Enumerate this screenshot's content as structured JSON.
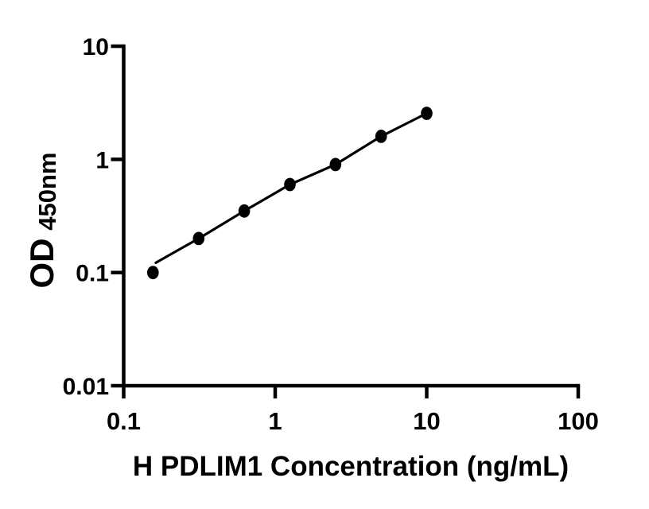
{
  "chart_data": {
    "type": "scatter",
    "title": "",
    "xlabel": "H PDLIM1 Concentration (ng/mL)",
    "ylabel_main": "OD",
    "ylabel_sub": "450nm",
    "x_scale": "log",
    "y_scale": "log",
    "xlim": [
      0.1,
      100
    ],
    "ylim": [
      0.01,
      10
    ],
    "grid": false,
    "legend": "none",
    "background_color": "#ffffff",
    "marker_color": "#000000",
    "line_color": "#000000",
    "x_ticks": [
      {
        "value": 0.1,
        "label": "0.1"
      },
      {
        "value": 1,
        "label": "1"
      },
      {
        "value": 10,
        "label": "10"
      },
      {
        "value": 100,
        "label": "100"
      }
    ],
    "y_ticks": [
      {
        "value": 0.01,
        "label": "0.01"
      },
      {
        "value": 0.1,
        "label": "0.1"
      },
      {
        "value": 1,
        "label": "1"
      },
      {
        "value": 10,
        "label": "10"
      }
    ],
    "points": [
      {
        "x": 0.156,
        "y": 0.1
      },
      {
        "x": 0.3125,
        "y": 0.2
      },
      {
        "x": 0.625,
        "y": 0.35
      },
      {
        "x": 1.25,
        "y": 0.6
      },
      {
        "x": 2.5,
        "y": 0.9
      },
      {
        "x": 5,
        "y": 1.6
      },
      {
        "x": 10,
        "y": 2.55
      }
    ],
    "fit_line": [
      {
        "x": 0.163,
        "y": 0.122
      },
      {
        "x": 0.3125,
        "y": 0.2
      },
      {
        "x": 0.625,
        "y": 0.35
      },
      {
        "x": 1.25,
        "y": 0.6
      },
      {
        "x": 2.5,
        "y": 0.9
      },
      {
        "x": 5,
        "y": 1.6
      },
      {
        "x": 10,
        "y": 2.55
      }
    ]
  }
}
